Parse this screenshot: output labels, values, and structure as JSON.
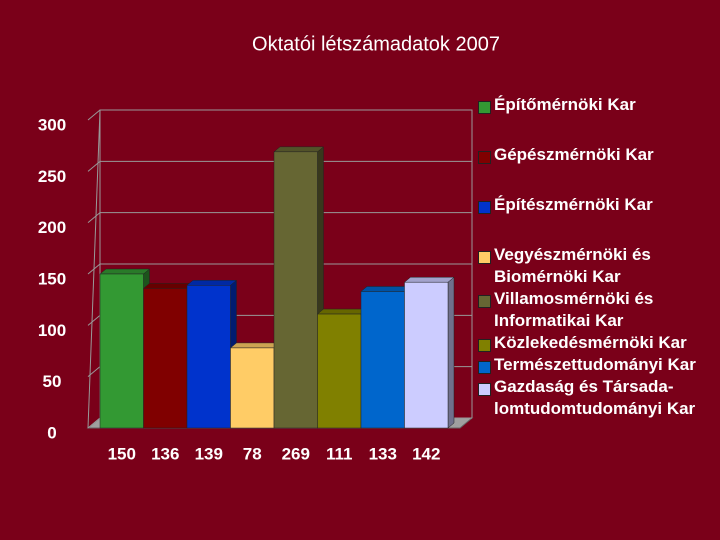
{
  "chart_data": {
    "type": "bar",
    "title": "Oktatói létszámadatok 2007",
    "categories": [
      null
    ],
    "series": [
      {
        "name": "Építőmérnöki Kar",
        "color": "#339933",
        "values": [
          150
        ]
      },
      {
        "name": "Gépészmérnöki Kar",
        "color": "#800000",
        "values": [
          136
        ]
      },
      {
        "name": "Építészmérnöki Kar",
        "color": "#0033cc",
        "values": [
          139
        ]
      },
      {
        "name": "Vegyészmérnöki és Biomérnöki Kar",
        "color": "#ffcc66",
        "values": [
          78
        ]
      },
      {
        "name": "Villamosmérnöki és Informatikai Kar",
        "color": "#666633",
        "values": [
          269
        ]
      },
      {
        "name": "Közlekedésmérnöki Kar",
        "color": "#808000",
        "values": [
          111
        ]
      },
      {
        "name": "Természettudományi Kar",
        "color": "#0066cc",
        "values": [
          133
        ]
      },
      {
        "name": "Gazdaság és Társada-lomtudomtudományi Kar",
        "color": "#ccccff",
        "values": [
          142
        ]
      }
    ],
    "ylim": [
      0,
      300
    ],
    "yticks": [
      0,
      50,
      100,
      150,
      200,
      250,
      300
    ],
    "grid": true,
    "legend": "right"
  }
}
